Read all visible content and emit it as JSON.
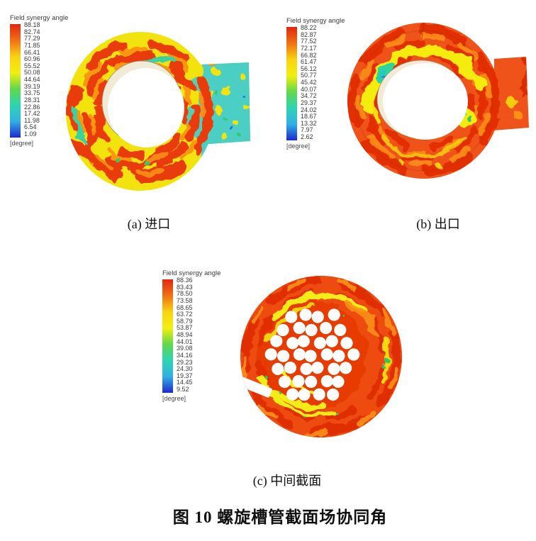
{
  "figure_caption": "图 10 螺旋槽管截面场协同角",
  "panels": {
    "a": {
      "caption": "(a) 进口",
      "legend_title": "Field synergy angle",
      "unit": "[degree]",
      "ticks": [
        "88.18",
        "82.74",
        "77.29",
        "71.85",
        "66.41",
        "60.96",
        "55.52",
        "50.08",
        "44.64",
        "39.19",
        "33.75",
        "28.31",
        "22.86",
        "17.42",
        "11.98",
        "6.54",
        "1.09"
      ]
    },
    "b": {
      "caption": "(b) 出口",
      "legend_title": "Field synergy angle",
      "unit": "[degree]",
      "ticks": [
        "88.22",
        "82.87",
        "77.52",
        "72.17",
        "66.82",
        "61.47",
        "56.12",
        "50.77",
        "45.42",
        "40.07",
        "34.72",
        "29.37",
        "24.02",
        "18.67",
        "13.32",
        "7.97",
        "2.62"
      ]
    },
    "c": {
      "caption": "(c) 中间截面",
      "legend_title": "Field synergy angle",
      "unit": "[degree]",
      "ticks": [
        "88.36",
        "83.43",
        "78.50",
        "73.58",
        "68.65",
        "63.72",
        "58.79",
        "53.87",
        "48.94",
        "44.01",
        "39.08",
        "34.16",
        "29.23",
        "24.30",
        "19.37",
        "14.45",
        "9.52"
      ]
    }
  },
  "colors": {
    "colormap_top_to_bottom": [
      "#e2270f",
      "#f07015",
      "#f8d312",
      "#f2ef10",
      "#62d84a",
      "#2dd5b2",
      "#33b0e4",
      "#1b2ad0"
    ],
    "contour_red": "#ea3a0e",
    "contour_orange": "#fb9013",
    "contour_yellow": "#f2e30e",
    "contour_green": "#35c96a",
    "contour_cyan": "#4ccfc4",
    "contour_blue": "#2a6ce0"
  }
}
